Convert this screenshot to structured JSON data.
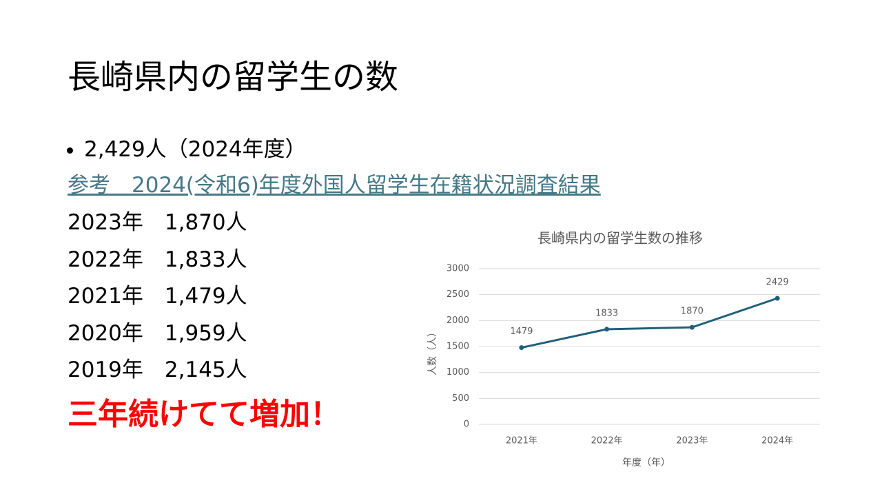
{
  "slide": {
    "title": "長崎県内の留学生の数",
    "bullet": "2,429人（2024年度）",
    "link": "参考　2024(令和6)年度外国人留学生在籍状況調査結果",
    "history": [
      "2023年　1,870人",
      "2022年　1,833人",
      "2021年　1,479人",
      "2020年　1,959人",
      "2019年　2,145人"
    ],
    "emphasis": "三年続けてて増加！"
  },
  "chart_data": {
    "type": "line",
    "title": "長崎県内の留学生数の推移",
    "x_label": "年度（年）",
    "y_label": "人数（人）",
    "categories": [
      "2021年",
      "2022年",
      "2023年",
      "2024年"
    ],
    "values": [
      1479,
      1833,
      1870,
      2429
    ],
    "color": "#1f5f7a",
    "ylim": [
      0,
      3000
    ],
    "yticks": [
      0,
      500,
      1000,
      1500,
      2000,
      2500,
      3000
    ],
    "grid": true
  }
}
